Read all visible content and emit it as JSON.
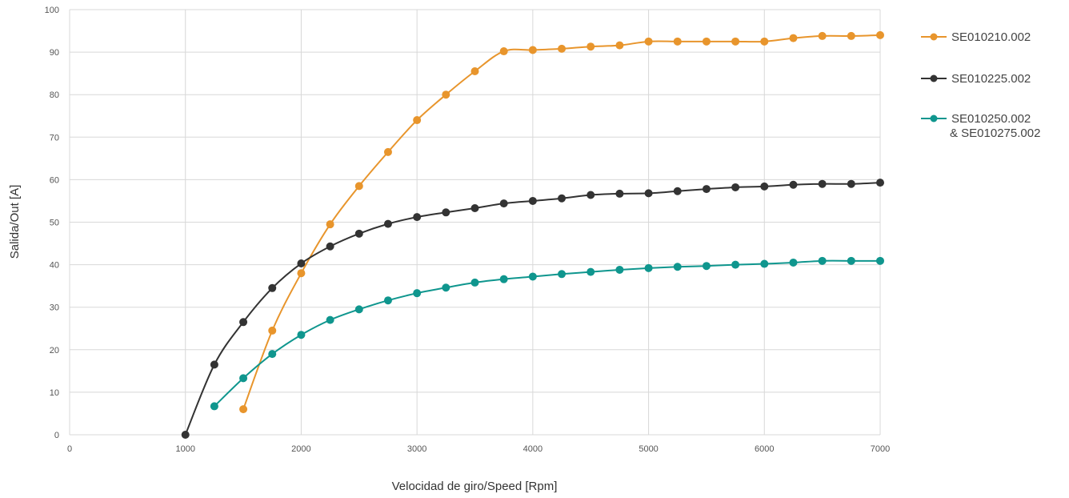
{
  "chart_data": {
    "type": "line",
    "title": "",
    "xlabel": "Velocidad de giro/Speed [Rpm]",
    "ylabel": "Salida/Out [A]",
    "xlim": [
      0,
      7000
    ],
    "ylim": [
      0,
      100
    ],
    "x_ticks": [
      0,
      1000,
      2000,
      3000,
      4000,
      5000,
      6000,
      7000
    ],
    "y_ticks": [
      0,
      10,
      20,
      30,
      40,
      50,
      60,
      70,
      80,
      90,
      100
    ],
    "grid": true,
    "legend_position": "right",
    "series": [
      {
        "name": "SE010210.002",
        "color": "#e8952c",
        "x": [
          1500,
          1750,
          2000,
          2250,
          2500,
          2750,
          3000,
          3250,
          3500,
          3750,
          4000,
          4250,
          4500,
          4750,
          5000,
          5250,
          5500,
          5750,
          6000,
          6250,
          6500,
          6750,
          7000
        ],
        "y": [
          6,
          24.5,
          38,
          49.5,
          58.5,
          66.5,
          74,
          80,
          85.5,
          90.2,
          90.5,
          90.8,
          91.3,
          91.6,
          92.5,
          92.5,
          92.5,
          92.5,
          92.5,
          93.3,
          93.8,
          93.8,
          94
        ]
      },
      {
        "name": "SE010225.002",
        "color": "#333333",
        "x": [
          1000,
          1250,
          1500,
          1750,
          2000,
          2250,
          2500,
          2750,
          3000,
          3250,
          3500,
          3750,
          4000,
          4250,
          4500,
          4750,
          5000,
          5250,
          5500,
          5750,
          6000,
          6250,
          6500,
          6750,
          7000
        ],
        "y": [
          0,
          16.5,
          26.5,
          34.5,
          40.3,
          44.3,
          47.3,
          49.6,
          51.2,
          52.3,
          53.3,
          54.4,
          55,
          55.6,
          56.4,
          56.7,
          56.8,
          57.3,
          57.8,
          58.2,
          58.4,
          58.8,
          59,
          59,
          59.3
        ]
      },
      {
        "name": "SE010250.002",
        "name_line2": "& SE010275.002",
        "color": "#0f968e",
        "x": [
          1250,
          1500,
          1750,
          2000,
          2250,
          2500,
          2750,
          3000,
          3250,
          3500,
          3750,
          4000,
          4250,
          4500,
          4750,
          5000,
          5250,
          5500,
          5750,
          6000,
          6250,
          6500,
          6750,
          7000
        ],
        "y": [
          6.7,
          13.3,
          19,
          23.5,
          27,
          29.5,
          31.6,
          33.3,
          34.6,
          35.8,
          36.6,
          37.2,
          37.8,
          38.3,
          38.8,
          39.2,
          39.5,
          39.7,
          40,
          40.2,
          40.5,
          40.9,
          40.9,
          40.9
        ]
      }
    ]
  }
}
